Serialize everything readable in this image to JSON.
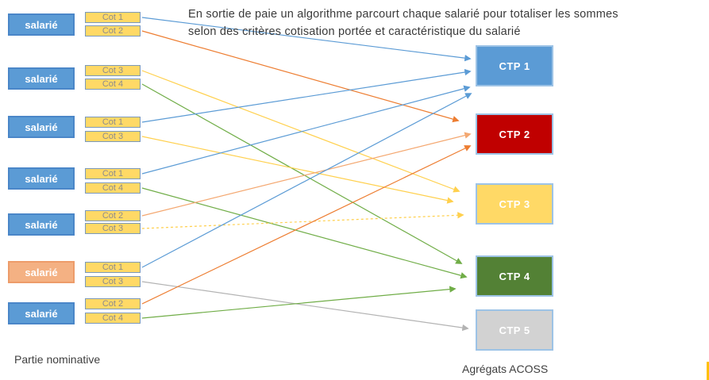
{
  "header": {
    "line1": "En sortie de paie un algorithme parcourt chaque salarié pour totaliser les sommes",
    "line2": "selon des critères cotisation portée et caractéristique du salarié"
  },
  "left": {
    "caption": "Partie nominative",
    "rows": [
      {
        "label": "salarié",
        "variant": "blue",
        "cots": [
          "Cot 1",
          "Cot 2"
        ]
      },
      {
        "label": "salarié",
        "variant": "blue",
        "cots": [
          "Cot 3",
          "Cot 4"
        ]
      },
      {
        "label": "salarié",
        "variant": "blue",
        "cots": [
          "Cot 1",
          "Cot 3"
        ]
      },
      {
        "label": "salarié",
        "variant": "blue",
        "cots": [
          "Cot 1",
          "Cot 4"
        ]
      },
      {
        "label": "salarié",
        "variant": "blue",
        "cots": [
          "Cot 2",
          "Cot 3"
        ]
      },
      {
        "label": "salarié",
        "variant": "orange",
        "cots": [
          "Cot 1",
          "Cot 3"
        ]
      },
      {
        "label": "salarié",
        "variant": "blue",
        "cots": [
          "Cot 2",
          "Cot 4"
        ]
      }
    ]
  },
  "right": {
    "caption": "Agrégats ACOSS",
    "ctps": [
      {
        "label": "CTP 1",
        "fill": "#5b9bd5"
      },
      {
        "label": "CTP 2",
        "fill": "#c00000"
      },
      {
        "label": "CTP 3",
        "fill": "#ffd966"
      },
      {
        "label": "CTP 4",
        "fill": "#538135"
      },
      {
        "label": "CTP 5",
        "fill": "#d2d2d2"
      }
    ]
  },
  "arrows": [
    {
      "row": 1,
      "slot": 0,
      "from": "Cot 1",
      "to": "CTP 1",
      "color": "#5b9bd5",
      "dashed": false
    },
    {
      "row": 1,
      "slot": 1,
      "from": "Cot 2",
      "to": "CTP 2",
      "color": "#ed7d31",
      "dashed": false
    },
    {
      "row": 2,
      "slot": 0,
      "from": "Cot 3",
      "to": "CTP 3",
      "color": "#ffd04d",
      "dashed": false
    },
    {
      "row": 2,
      "slot": 1,
      "from": "Cot 4",
      "to": "CTP 4",
      "color": "#70ad47",
      "dashed": false
    },
    {
      "row": 3,
      "slot": 0,
      "from": "Cot 1",
      "to": "CTP 1",
      "color": "#5b9bd5",
      "dashed": false
    },
    {
      "row": 3,
      "slot": 1,
      "from": "Cot 3",
      "to": "CTP 3",
      "color": "#ffd04d",
      "dashed": false
    },
    {
      "row": 4,
      "slot": 0,
      "from": "Cot 1",
      "to": "CTP 1",
      "color": "#5b9bd5",
      "dashed": false
    },
    {
      "row": 4,
      "slot": 1,
      "from": "Cot 4",
      "to": "CTP 4",
      "color": "#70ad47",
      "dashed": false
    },
    {
      "row": 5,
      "slot": 0,
      "from": "Cot 2",
      "to": "CTP 2",
      "color": "#f4a871",
      "dashed": false
    },
    {
      "row": 5,
      "slot": 1,
      "from": "Cot 3",
      "to": "CTP 3",
      "color": "#ffd04d",
      "dashed": true
    },
    {
      "row": 6,
      "slot": 0,
      "from": "Cot 1",
      "to": "CTP 1",
      "color": "#5b9bd5",
      "dashed": false
    },
    {
      "row": 6,
      "slot": 1,
      "from": "Cot 3",
      "to": "CTP 5",
      "color": "#b3b3b3",
      "dashed": false
    },
    {
      "row": 7,
      "slot": 0,
      "from": "Cot 2",
      "to": "CTP 2",
      "color": "#ed7d31",
      "dashed": false
    },
    {
      "row": 7,
      "slot": 1,
      "from": "Cot 4",
      "to": "CTP 4",
      "color": "#70ad47",
      "dashed": false
    }
  ],
  "colors": {
    "salarie_blue": "#5b9bd5",
    "salarie_orange": "#f4b183",
    "cot_fill": "#ffd966",
    "edge_strip": "#ffc000"
  }
}
